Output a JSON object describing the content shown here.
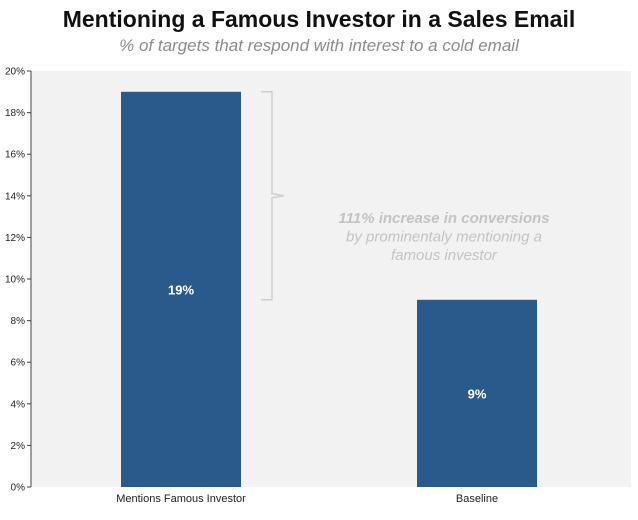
{
  "chart_data": {
    "type": "bar",
    "title": "Mentioning a Famous Investor in a Sales Email",
    "subtitle": "% of targets that respond with interest to a cold email",
    "categories": [
      "Mentions Famous Investor",
      "Baseline"
    ],
    "values": [
      19,
      9
    ],
    "data_labels": [
      "19%",
      "9%"
    ],
    "yticks": [
      "0%",
      "2%",
      "4%",
      "6%",
      "8%",
      "10%",
      "12%",
      "14%",
      "16%",
      "18%",
      "20%"
    ],
    "ylim": [
      0,
      20
    ],
    "xlabel": "",
    "ylabel": "",
    "grid": false,
    "annotation": {
      "lines": [
        "111% increase in conversions",
        "by prominentaly mentioning a",
        "famous investor"
      ],
      "bracket_from": 9,
      "bracket_to": 19
    },
    "colors": {
      "bar": "#2a5a8c",
      "plot_bg": "#f2f2f2",
      "annotation": "#c3c3c3"
    }
  }
}
